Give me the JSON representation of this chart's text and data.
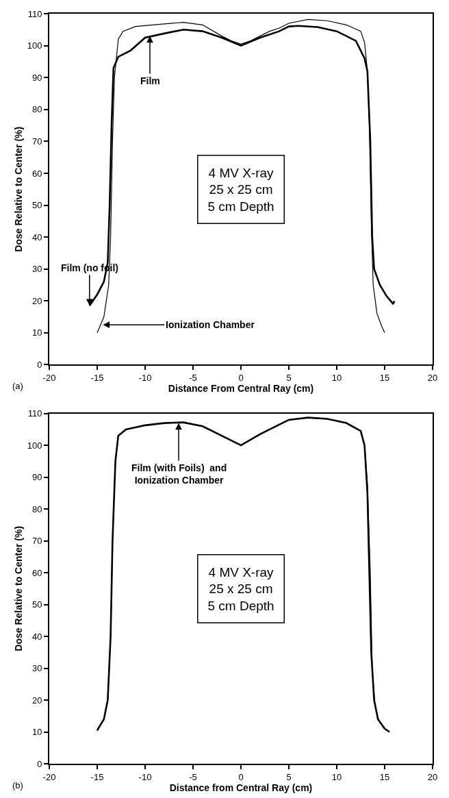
{
  "chart_data": [
    {
      "type": "line",
      "xlabel": "Distance From Central Ray (cm)",
      "ylabel": "Dose Relative to Center (%)",
      "xlim": [
        -20,
        20
      ],
      "ylim": [
        0,
        110
      ],
      "xticks": [
        -20,
        -15,
        -10,
        -5,
        0,
        5,
        10,
        15,
        20
      ],
      "yticks": [
        0,
        10,
        20,
        30,
        40,
        50,
        60,
        70,
        80,
        90,
        100,
        110
      ],
      "marker": "none",
      "line_style": "solid",
      "series": [
        {
          "color": "#000000",
          "x": [
            -15.8,
            -15,
            -14.3,
            -13.9,
            -13.7,
            -13.5,
            -13.3,
            -12.8,
            -11.5,
            -10,
            -8,
            -6,
            -4,
            -2,
            0,
            2,
            4,
            5,
            6,
            8,
            10,
            12,
            12.9,
            13.2,
            13.5,
            13.7,
            13.9,
            14.5,
            15.2,
            15.9,
            16
          ],
          "values": [
            18.5,
            22,
            26,
            32,
            50,
            75,
            93,
            96.5,
            98.5,
            102.5,
            103.8,
            105,
            104.5,
            102.5,
            100,
            102.5,
            104.5,
            106,
            106.2,
            105.8,
            104.5,
            101.5,
            96,
            92,
            70,
            40,
            30,
            25,
            21.5,
            19,
            20
          ]
        },
        {
          "color": "#000000",
          "x": [
            -15,
            -14.3,
            -13.8,
            -13.6,
            -13.4,
            -13.2,
            -12.8,
            -12.3,
            -11,
            -8,
            -6,
            -4,
            -2,
            -1,
            0,
            1,
            2,
            3,
            4,
            5,
            7,
            9,
            11,
            12.5,
            12.9,
            13.2,
            13.4,
            13.6,
            13.8,
            14.2,
            14.7,
            15
          ],
          "values": [
            10,
            15,
            25,
            40,
            70,
            90,
            102,
            104.5,
            106,
            106.8,
            107.3,
            106.5,
            103,
            101.5,
            100.5,
            101.5,
            103,
            104.5,
            105.5,
            107,
            108.2,
            107.8,
            106.5,
            104.5,
            101,
            92,
            75,
            45,
            25,
            16,
            12,
            10
          ]
        }
      ],
      "annotations": [
        {
          "text": "Film",
          "x": -9.5,
          "y": 103
        },
        {
          "text": "Film (no foil)",
          "x": -15.8,
          "y": 18.5
        },
        {
          "text": "Ionization Chamber",
          "x": -14.4,
          "y": 12.5
        },
        "4 MV X-ray\n25 x 25 cm\n5 cm Depth",
        "(a)"
      ]
    },
    {
      "type": "line",
      "xlabel": "Distance from Central Ray (cm)",
      "ylabel": "Dose Relative to Center (%)",
      "xlim": [
        -20,
        20
      ],
      "ylim": [
        0,
        110
      ],
      "xticks": [
        -20,
        -15,
        -10,
        -5,
        0,
        5,
        10,
        15,
        20
      ],
      "yticks": [
        0,
        10,
        20,
        30,
        40,
        50,
        60,
        70,
        80,
        90,
        100,
        110
      ],
      "marker": "none",
      "line_style": "solid",
      "series": [
        {
          "color": "#000000",
          "x": [
            -15,
            -14.3,
            -13.9,
            -13.6,
            -13.4,
            -13.1,
            -12.8,
            -12,
            -10,
            -8,
            -6,
            -4,
            -2,
            0,
            2,
            4,
            5,
            7,
            9,
            11,
            12.5,
            12.9,
            13.2,
            13.4,
            13.6,
            13.9,
            14.3,
            15,
            15.5
          ],
          "values": [
            10.5,
            14,
            20,
            40,
            70,
            95,
            103,
            105,
            106.3,
            107,
            107.2,
            106,
            103,
            100,
            103.5,
            106.5,
            108,
            108.7,
            108.3,
            107,
            104.5,
            100,
            85,
            60,
            35,
            20,
            14,
            11,
            10
          ]
        },
        {
          "color": "#000000",
          "x": [
            -15,
            -14.3,
            -13.9,
            -13.6,
            -13.4,
            -13.1,
            -12.8,
            -12,
            -10,
            -8,
            -6,
            -4,
            -2,
            0,
            2,
            4,
            5,
            7,
            9,
            11,
            12.5,
            12.9,
            13.2,
            13.5,
            13.7,
            14,
            14.4,
            15,
            15.5
          ],
          "values": [
            10.3,
            14,
            20,
            40,
            70,
            95,
            103,
            105,
            106.2,
            107,
            107.1,
            106,
            103,
            100,
            103.5,
            106.5,
            108,
            108.6,
            108.3,
            107,
            104.5,
            100,
            88,
            60,
            30,
            18,
            13.5,
            11,
            10
          ]
        }
      ],
      "annotations": [
        {
          "text": "Film (with Foils)  and\nIonization Chamber",
          "x": -6.5,
          "y": 107
        },
        "4 MV X-ray\n25 x 25 cm\n5 cm Depth",
        "(b)"
      ]
    }
  ]
}
